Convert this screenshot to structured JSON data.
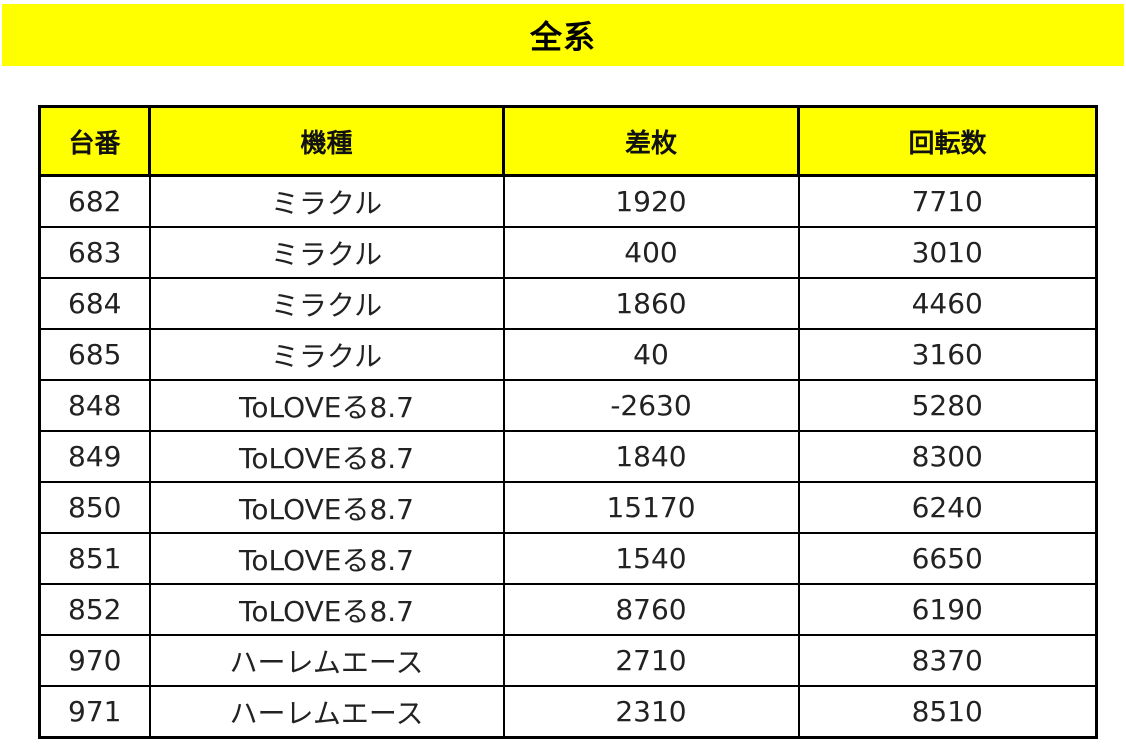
{
  "title": "全系",
  "table": {
    "headers": [
      "台番",
      "機種",
      "差枚",
      "回転数"
    ],
    "rows": [
      [
        "682",
        "ミラクル",
        "1920",
        "7710"
      ],
      [
        "683",
        "ミラクル",
        "400",
        "3010"
      ],
      [
        "684",
        "ミラクル",
        "1860",
        "4460"
      ],
      [
        "685",
        "ミラクル",
        "40",
        "3160"
      ],
      [
        "848",
        "ToLOVEる8.7",
        "-2630",
        "5280"
      ],
      [
        "849",
        "ToLOVEる8.7",
        "1840",
        "8300"
      ],
      [
        "850",
        "ToLOVEる8.7",
        "15170",
        "6240"
      ],
      [
        "851",
        "ToLOVEる8.7",
        "1540",
        "6650"
      ],
      [
        "852",
        "ToLOVEる8.7",
        "8760",
        "6190"
      ],
      [
        "970",
        "ハーレムエース",
        "2710",
        "8370"
      ],
      [
        "971",
        "ハーレムエース",
        "2310",
        "8510"
      ]
    ]
  },
  "colors": {
    "header_background": "#ffff00",
    "border": "#000000",
    "text": "#222222"
  }
}
